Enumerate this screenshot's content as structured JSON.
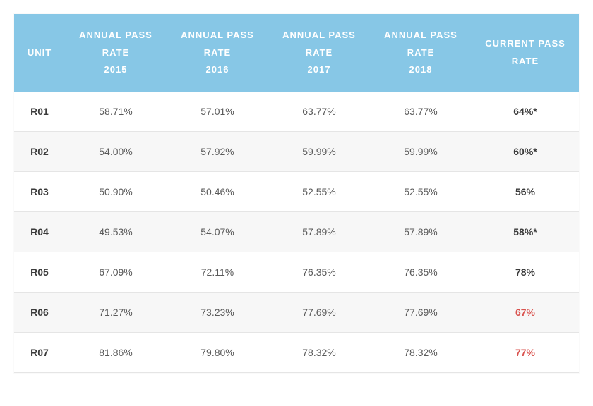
{
  "table": {
    "type": "table",
    "header_bg": "#87c7e6",
    "header_text_color": "#ffffff",
    "body_text_color": "#5a5a5a",
    "unit_text_color": "#3a3a3a",
    "current_text_color": "#3a3a3a",
    "highlight_color": "#d9534f",
    "row_alt_bg": "#f7f7f7",
    "border_color": "#e5e5e5",
    "header_fontsize": 13,
    "body_fontsize": 14,
    "columns": [
      {
        "label": "UNIT",
        "width": "9%"
      },
      {
        "label_line1": "ANNUAL PASS",
        "label_line2": "RATE",
        "label_line3": "2015",
        "width": "18%"
      },
      {
        "label_line1": "ANNUAL PASS",
        "label_line2": "RATE",
        "label_line3": "2016",
        "width": "18%"
      },
      {
        "label_line1": "ANNUAL PASS",
        "label_line2": "RATE",
        "label_line3": "2017",
        "width": "18%"
      },
      {
        "label_line1": "ANNUAL PASS",
        "label_line2": "RATE",
        "label_line3": "2018",
        "width": "18%"
      },
      {
        "label_line1": "CURRENT PASS",
        "label_line2": "RATE",
        "width": "19%"
      }
    ],
    "rows": [
      {
        "unit": "R01",
        "y2015": "58.71%",
        "y2016": "57.01%",
        "y2017": "63.77%",
        "y2018": "63.77%",
        "current": "64%*",
        "highlight": false
      },
      {
        "unit": "R02",
        "y2015": "54.00%",
        "y2016": "57.92%",
        "y2017": "59.99%",
        "y2018": "59.99%",
        "current": "60%*",
        "highlight": false
      },
      {
        "unit": "R03",
        "y2015": "50.90%",
        "y2016": "50.46%",
        "y2017": "52.55%",
        "y2018": "52.55%",
        "current": "56%",
        "highlight": false
      },
      {
        "unit": "R04",
        "y2015": "49.53%",
        "y2016": "54.07%",
        "y2017": "57.89%",
        "y2018": "57.89%",
        "current": "58%*",
        "highlight": false
      },
      {
        "unit": "R05",
        "y2015": "67.09%",
        "y2016": "72.11%",
        "y2017": "76.35%",
        "y2018": "76.35%",
        "current": "78%",
        "highlight": false
      },
      {
        "unit": "R06",
        "y2015": "71.27%",
        "y2016": "73.23%",
        "y2017": "77.69%",
        "y2018": "77.69%",
        "current": "67%",
        "highlight": true
      },
      {
        "unit": "R07",
        "y2015": "81.86%",
        "y2016": "79.80%",
        "y2017": "78.32%",
        "y2018": "78.32%",
        "current": "77%",
        "highlight": true
      }
    ]
  }
}
